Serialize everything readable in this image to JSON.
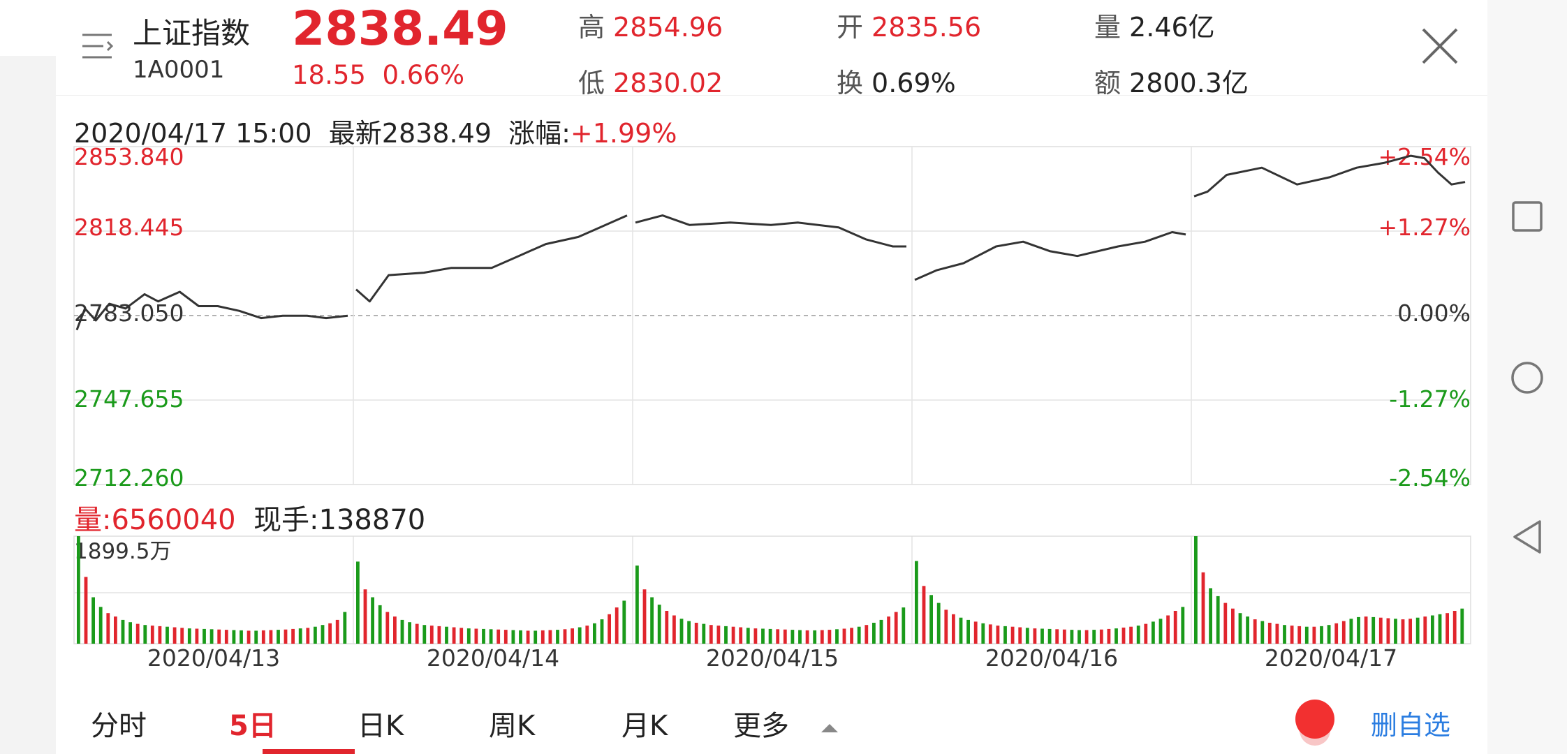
{
  "header": {
    "name": "上证指数",
    "code": "1A0001",
    "price": "2838.49",
    "change": "18.55",
    "change_pct": "0.66%",
    "high_label": "高",
    "high": "2854.96",
    "open_label": "开",
    "open": "2835.56",
    "volume_label": "量",
    "volume": "2.46亿",
    "low_label": "低",
    "low": "2830.02",
    "turnover_label": "换",
    "turnover": "0.69%",
    "amount_label": "额",
    "amount": "2800.3亿"
  },
  "info": {
    "datetime": "2020/04/17 15:00",
    "latest": "最新2838.49",
    "pct_label": "涨幅:",
    "pct": "+1.99%"
  },
  "volume_info": {
    "total": "量:6560040",
    "current": "现手:138870",
    "max_label": "1899.5万"
  },
  "tabs": [
    "分时",
    "5日",
    "日K",
    "周K",
    "月K",
    "更多"
  ],
  "active_tab": "5日",
  "fav_label": "删自选",
  "colors": {
    "up": "#e1252d",
    "down": "#1a9a1a",
    "accent_blue": "#2b7de1"
  },
  "chart_data": {
    "type": "line",
    "dates": [
      "2020/04/13",
      "2020/04/14",
      "2020/04/15",
      "2020/04/16",
      "2020/04/17"
    ],
    "y_ticks": [
      "2853.840",
      "2818.445",
      "2783.050",
      "2747.655",
      "2712.260"
    ],
    "pct_ticks": [
      "+2.54%",
      "+1.27%",
      "0.00%",
      "-1.27%",
      "-2.54%"
    ],
    "ylim": [
      2712.26,
      2853.84
    ],
    "baseline": 2783.05,
    "price_series": [
      [
        [
          0,
          2777
        ],
        [
          0.03,
          2786
        ],
        [
          0.07,
          2781
        ],
        [
          0.12,
          2788
        ],
        [
          0.18,
          2786
        ],
        [
          0.25,
          2792
        ],
        [
          0.3,
          2789
        ],
        [
          0.38,
          2793
        ],
        [
          0.45,
          2787
        ],
        [
          0.52,
          2787
        ],
        [
          0.6,
          2785
        ],
        [
          0.68,
          2782
        ],
        [
          0.76,
          2783
        ],
        [
          0.85,
          2783
        ],
        [
          0.92,
          2782
        ],
        [
          1,
          2783
        ]
      ],
      [
        [
          0,
          2794
        ],
        [
          0.05,
          2789
        ],
        [
          0.12,
          2800
        ],
        [
          0.25,
          2801
        ],
        [
          0.35,
          2803
        ],
        [
          0.5,
          2803
        ],
        [
          0.6,
          2808
        ],
        [
          0.7,
          2813
        ],
        [
          0.82,
          2816
        ],
        [
          0.9,
          2820
        ],
        [
          1,
          2825
        ]
      ],
      [
        [
          0,
          2822
        ],
        [
          0.1,
          2825
        ],
        [
          0.2,
          2821
        ],
        [
          0.35,
          2822
        ],
        [
          0.5,
          2821
        ],
        [
          0.6,
          2822
        ],
        [
          0.75,
          2820
        ],
        [
          0.85,
          2815
        ],
        [
          0.95,
          2812
        ],
        [
          1,
          2812
        ]
      ],
      [
        [
          0,
          2798
        ],
        [
          0.08,
          2802
        ],
        [
          0.18,
          2805
        ],
        [
          0.3,
          2812
        ],
        [
          0.4,
          2814
        ],
        [
          0.5,
          2810
        ],
        [
          0.6,
          2808
        ],
        [
          0.75,
          2812
        ],
        [
          0.85,
          2814
        ],
        [
          0.95,
          2818
        ],
        [
          1,
          2817
        ]
      ],
      [
        [
          0,
          2833
        ],
        [
          0.05,
          2835
        ],
        [
          0.12,
          2842
        ],
        [
          0.25,
          2845
        ],
        [
          0.38,
          2838
        ],
        [
          0.5,
          2841
        ],
        [
          0.6,
          2845
        ],
        [
          0.7,
          2847
        ],
        [
          0.8,
          2850
        ],
        [
          0.85,
          2849
        ],
        [
          0.9,
          2843
        ],
        [
          0.95,
          2838
        ],
        [
          1,
          2839
        ]
      ]
    ],
    "volume_ylim": [
      0,
      1899.5
    ],
    "volume_series": [
      [
        1899.5,
        1180,
        820,
        650,
        540,
        480,
        420,
        380,
        350,
        330,
        320,
        310,
        300,
        290,
        280,
        270,
        265,
        260,
        255,
        250,
        245,
        240,
        235,
        230,
        230,
        235,
        240,
        245,
        250,
        260,
        270,
        280,
        300,
        330,
        360,
        420,
        560
      ],
      [
        1450,
        960,
        820,
        680,
        560,
        480,
        420,
        380,
        350,
        330,
        320,
        310,
        300,
        290,
        280,
        270,
        265,
        260,
        255,
        250,
        245,
        240,
        235,
        230,
        230,
        235,
        240,
        245,
        255,
        270,
        290,
        320,
        360,
        430,
        520,
        640,
        760
      ],
      [
        1380,
        960,
        820,
        690,
        580,
        500,
        440,
        400,
        370,
        350,
        330,
        320,
        310,
        300,
        290,
        280,
        270,
        265,
        260,
        255,
        250,
        245,
        240,
        235,
        235,
        240,
        245,
        255,
        265,
        280,
        300,
        330,
        370,
        420,
        480,
        560,
        640
      ],
      [
        1460,
        1020,
        860,
        720,
        600,
        520,
        460,
        420,
        390,
        360,
        340,
        320,
        310,
        300,
        290,
        280,
        270,
        265,
        260,
        255,
        250,
        245,
        240,
        240,
        245,
        250,
        260,
        270,
        285,
        300,
        320,
        350,
        390,
        440,
        500,
        580,
        650
      ],
      [
        1899.5,
        1260,
        980,
        840,
        720,
        620,
        540,
        480,
        430,
        400,
        370,
        350,
        330,
        320,
        310,
        300,
        300,
        310,
        330,
        360,
        400,
        440,
        470,
        480,
        470,
        460,
        450,
        440,
        430,
        440,
        460,
        480,
        500,
        520,
        540,
        580,
        620
      ]
    ]
  }
}
